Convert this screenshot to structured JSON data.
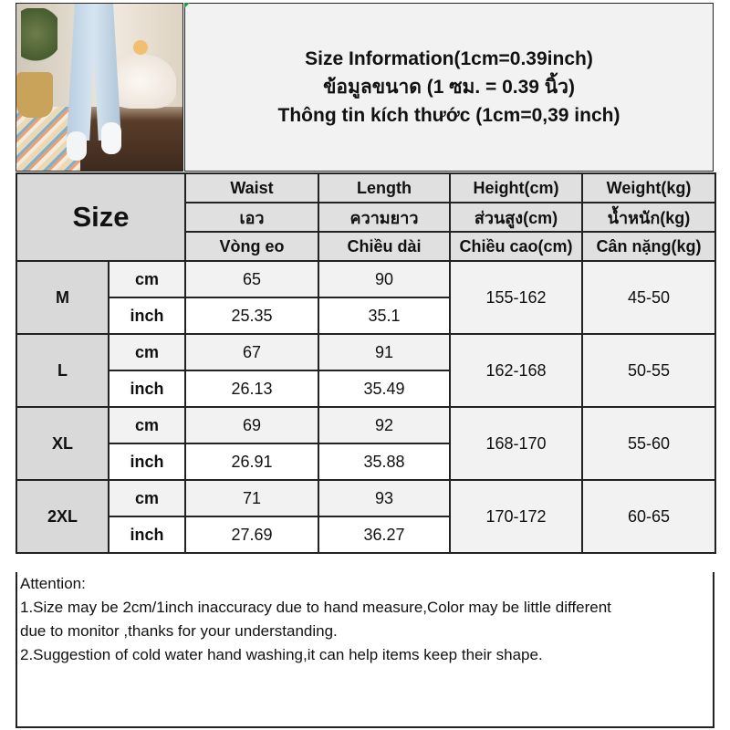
{
  "title": {
    "line1": "Size Information(1cm=0.39inch)",
    "line2": "ข้อมูลขนาด (1 ซม. = 0.39 นิ้ว)",
    "line3": "Thông tin kích thước (1cm=0,39 inch)"
  },
  "table": {
    "size_label": "Size",
    "headers": [
      [
        "Waist",
        "Length",
        "Height(cm)",
        "Weight(kg)"
      ],
      [
        "เอว",
        "ความยาว",
        "ส่วนสูง(cm)",
        "น้ำหนัก(kg)"
      ],
      [
        "Vòng eo",
        "Chiều dài",
        "Chiều cao(cm)",
        "Cân nặng(kg)"
      ]
    ],
    "rows": [
      {
        "size": "M",
        "cm_label": "cm",
        "inch_label": "inch",
        "waist_cm": "65",
        "length_cm": "90",
        "waist_inch": "25.35",
        "length_inch": "35.1",
        "height": "155-162",
        "weight": "45-50"
      },
      {
        "size": "L",
        "cm_label": "cm",
        "inch_label": "inch",
        "waist_cm": "67",
        "length_cm": "91",
        "waist_inch": "26.13",
        "length_inch": "35.49",
        "height": "162-168",
        "weight": "50-55"
      },
      {
        "size": "XL",
        "cm_label": "cm",
        "inch_label": "inch",
        "waist_cm": "69",
        "length_cm": "92",
        "waist_inch": "26.91",
        "length_inch": "35.88",
        "height": "168-170",
        "weight": "55-60"
      },
      {
        "size": "2XL",
        "cm_label": "cm",
        "inch_label": "inch",
        "waist_cm": "71",
        "length_cm": "93",
        "waist_inch": "27.69",
        "length_inch": "36.27",
        "height": "170-172",
        "weight": "60-65"
      }
    ]
  },
  "notes": {
    "heading": "Attention:",
    "line1": "1.Size may be 2cm/1inch inaccuracy due to hand measure,Color may be little different",
    "line1b": "due to monitor ,thanks for your understanding.",
    "line2": "2.Suggestion of cold water hand washing,it can help items keep their shape."
  }
}
